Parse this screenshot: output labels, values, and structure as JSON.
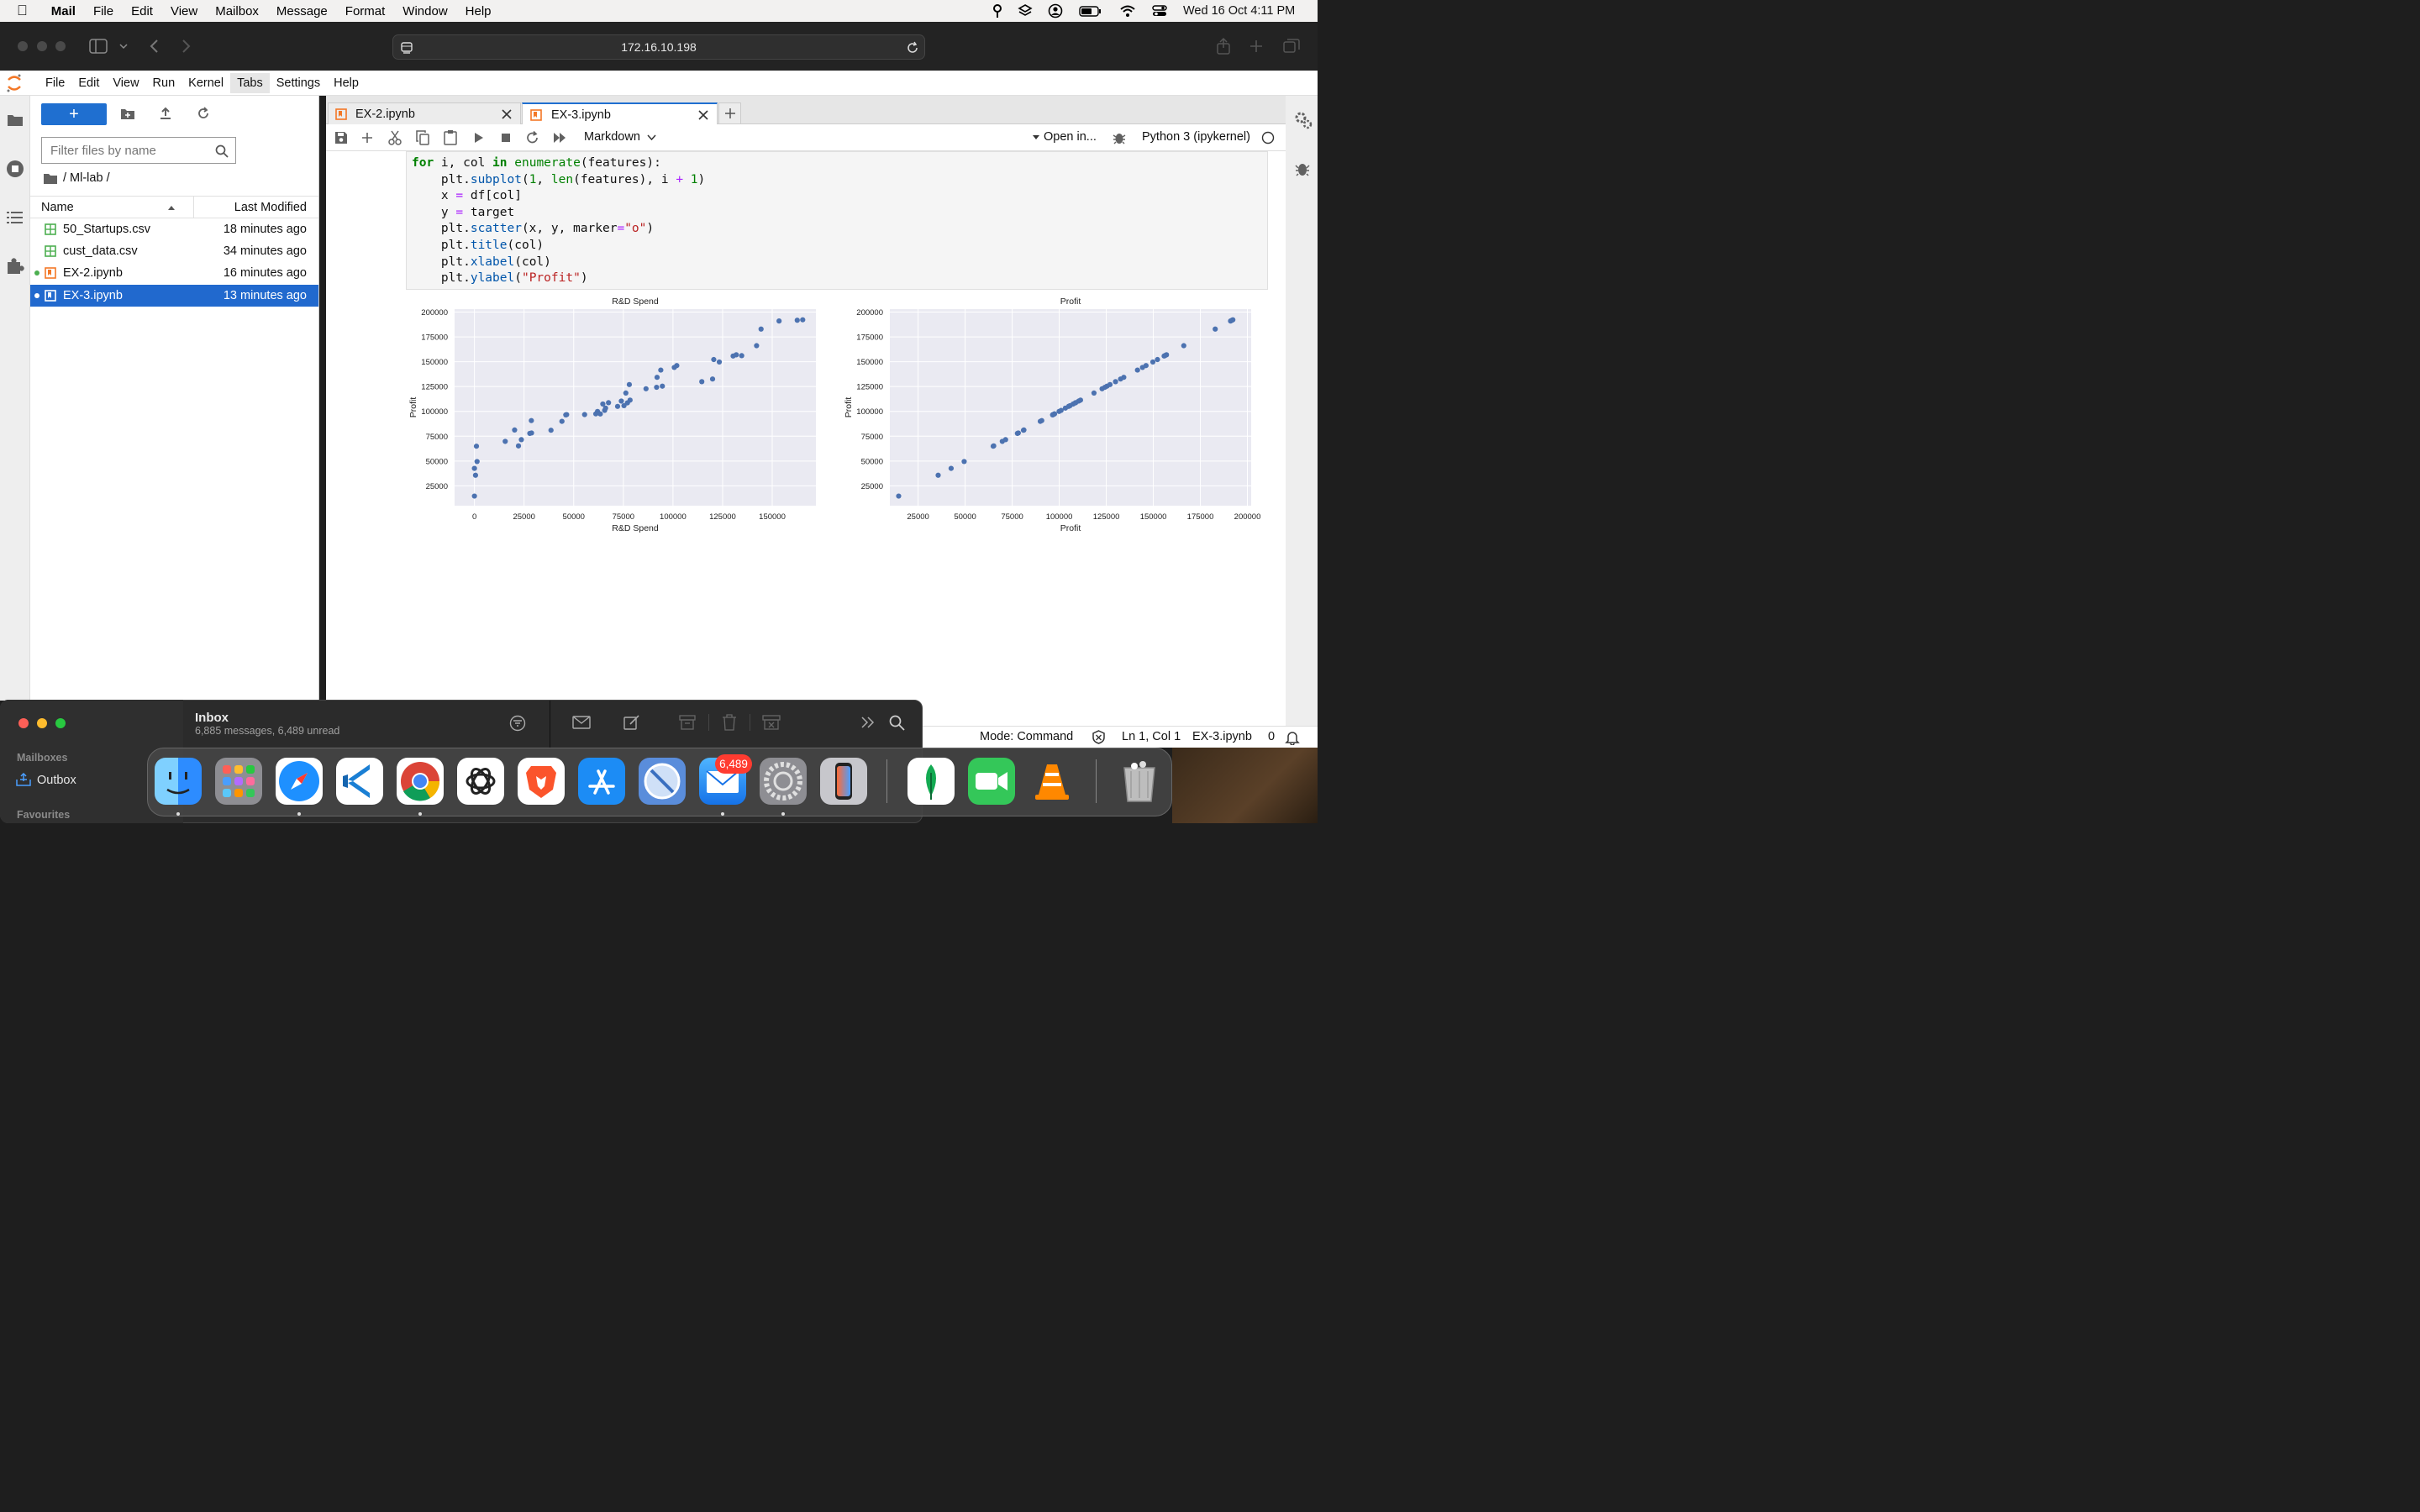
{
  "menubar": {
    "app": "Mail",
    "items": [
      "File",
      "Edit",
      "View",
      "Mailbox",
      "Message",
      "Format",
      "Window",
      "Help"
    ],
    "datetime": "Wed 16 Oct  4:11 PM"
  },
  "browser": {
    "url": "172.16.10.198"
  },
  "jupyter": {
    "menu": [
      "File",
      "Edit",
      "View",
      "Run",
      "Kernel",
      "Tabs",
      "Settings",
      "Help"
    ],
    "filebrowser": {
      "filter_placeholder": "Filter files by name",
      "path": "/ Ml-lab /",
      "col_name": "Name",
      "col_modified": "Last Modified",
      "files": [
        {
          "name": "50_Startups.csv",
          "modified": "18 minutes ago"
        },
        {
          "name": "cust_data.csv",
          "modified": "34 minutes ago"
        },
        {
          "name": "EX-2.ipynb",
          "modified": "16 minutes ago"
        },
        {
          "name": "EX-3.ipynb",
          "modified": "13 minutes ago"
        }
      ]
    },
    "tabs": [
      "EX-2.ipynb",
      "EX-3.ipynb"
    ],
    "toolbar": {
      "cell_type": "Markdown",
      "open_in": "Open in...",
      "kernel": "Python 3 (ipykernel)"
    },
    "status": {
      "mode": "Mode: Command",
      "position": "Ln 1, Col 1",
      "file": "EX-3.ipynb",
      "count": "0"
    }
  },
  "code_lines": [
    "for i, col in enumerate(features):",
    "    plt.subplot(1, len(features), i + 1)",
    "    x = df[col]",
    "    y = target",
    "    plt.scatter(x, y, marker=\"o\")",
    "    plt.title(col)",
    "    plt.xlabel(col)",
    "    plt.ylabel(\"Profit\")"
  ],
  "chart_data": [
    {
      "type": "scatter",
      "title": "R&D Spend",
      "xlabel": "R&D Spend",
      "ylabel": "Profit",
      "xlim": [
        -10000,
        172000
      ],
      "ylim": [
        5000,
        203000
      ],
      "xticks": [
        0,
        25000,
        50000,
        75000,
        100000,
        125000,
        150000
      ],
      "yticks": [
        25000,
        50000,
        75000,
        100000,
        125000,
        150000,
        175000,
        200000
      ],
      "x": [
        165349,
        162598,
        153442,
        144372,
        142107,
        131877,
        134615,
        130298,
        120543,
        123335,
        101913,
        100672,
        93864,
        91992,
        119943,
        114524,
        78014,
        94657,
        91749,
        86420,
        76254,
        78389,
        73995,
        67533,
        77044,
        64665,
        75329,
        72108,
        66052,
        65605,
        61994,
        61136,
        63409,
        55494,
        46427,
        46014,
        28664,
        44070,
        20230,
        38559,
        28754,
        27893,
        23641,
        15506,
        22178,
        1001,
        1315,
        0,
        542,
        0
      ],
      "y": [
        192262,
        191792,
        191050,
        182902,
        166188,
        156991,
        156123,
        155753,
        152212,
        149760,
        146122,
        144259,
        141586,
        134307,
        132603,
        129917,
        126993,
        125371,
        124267,
        122777,
        118474,
        111314,
        110352,
        108734,
        108552,
        107404,
        105734,
        105008,
        103282,
        101005,
        99938,
        97484,
        97427,
        96779,
        96712,
        96479,
        90708,
        89949,
        81230,
        81006,
        78240,
        77798,
        71498,
        69759,
        65200,
        64927,
        49491,
        42560,
        35673,
        14681
      ]
    },
    {
      "type": "scatter",
      "title": "Profit",
      "xlabel": "Profit",
      "ylabel": "Profit",
      "xlim": [
        10000,
        202000
      ],
      "ylim": [
        5000,
        203000
      ],
      "xticks": [
        25000,
        50000,
        75000,
        100000,
        125000,
        150000,
        175000,
        200000
      ],
      "yticks": [
        25000,
        50000,
        75000,
        100000,
        125000,
        150000,
        175000,
        200000
      ],
      "x": [
        192262,
        191792,
        191050,
        182902,
        166188,
        156991,
        156123,
        155753,
        152212,
        149760,
        146122,
        144259,
        141586,
        134307,
        132603,
        129917,
        126993,
        125371,
        124267,
        122777,
        118474,
        111314,
        110352,
        108734,
        108552,
        107404,
        105734,
        105008,
        103282,
        101005,
        99938,
        97484,
        97427,
        96779,
        96712,
        96479,
        90708,
        89949,
        81230,
        81006,
        78240,
        77798,
        71498,
        69759,
        65200,
        64927,
        49491,
        42560,
        35673,
        14681
      ],
      "y": [
        192262,
        191792,
        191050,
        182902,
        166188,
        156991,
        156123,
        155753,
        152212,
        149760,
        146122,
        144259,
        141586,
        134307,
        132603,
        129917,
        126993,
        125371,
        124267,
        122777,
        118474,
        111314,
        110352,
        108734,
        108552,
        107404,
        105734,
        105008,
        103282,
        101005,
        99938,
        97484,
        97427,
        96779,
        96712,
        96479,
        90708,
        89949,
        81230,
        81006,
        78240,
        77798,
        71498,
        69759,
        65200,
        64927,
        49491,
        42560,
        35673,
        14681
      ]
    }
  ],
  "mail": {
    "title": "Inbox",
    "subtitle": "6,885 messages, 6,489 unread",
    "mailboxes": "Mailboxes",
    "outbox": "Outbox",
    "favourites": "Favourites"
  },
  "dock": {
    "mail_badge": "6,489"
  },
  "colors": {
    "accent": "#1f6fd0",
    "point": "#4c72b0",
    "plot_bg": "#eaeaf2"
  }
}
